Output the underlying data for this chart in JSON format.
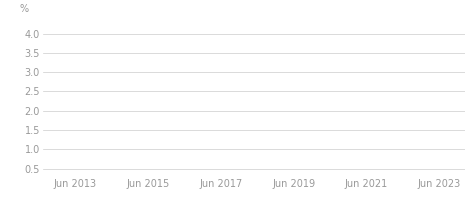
{
  "ylabel": "%",
  "yticks": [
    0.5,
    1.0,
    1.5,
    2.0,
    2.5,
    3.0,
    3.5,
    4.0
  ],
  "ytick_labels": [
    "0.5",
    "1.0",
    "1.5",
    "2.0",
    "2.5",
    "3.0",
    "3.5",
    "4.0"
  ],
  "ylim": [
    0.3,
    4.2
  ],
  "xtick_labels": [
    "Jun 2013",
    "Jun 2015",
    "Jun 2017",
    "Jun 2019",
    "Jun 2021",
    "Jun 2023"
  ],
  "xtick_positions": [
    2013.5,
    2015.5,
    2017.5,
    2019.5,
    2021.5,
    2023.5
  ],
  "xlim": [
    2012.6,
    2024.2
  ],
  "grid_color": "#cccccc",
  "background_color": "#ffffff",
  "tick_label_color": "#999999",
  "ylabel_color": "#999999",
  "tick_fontsize": 7.0,
  "ylabel_fontsize": 7.0
}
